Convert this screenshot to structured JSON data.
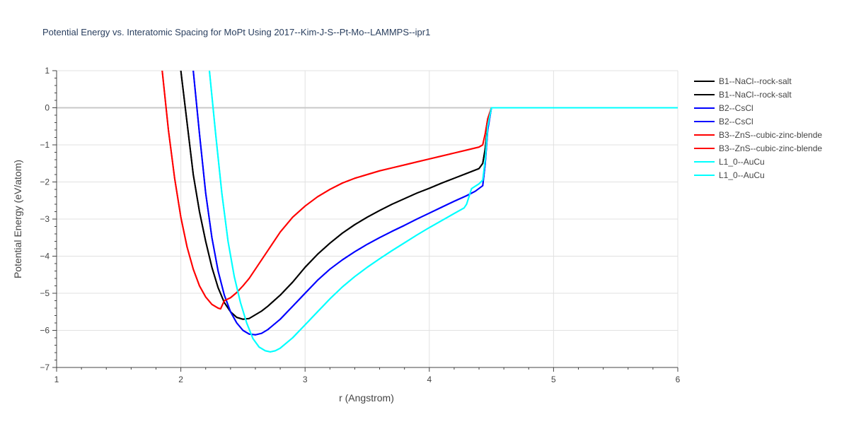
{
  "chart_data": {
    "type": "line",
    "title": "Potential Energy vs. Interatomic Spacing for MoPt Using 2017--Kim-J-S--Pt-Mo--LAMMPS--ipr1",
    "xlabel": "r (Angstrom)",
    "ylabel": "Potential Energy (eV/atom)",
    "xlim": [
      1,
      6
    ],
    "ylim": [
      -7,
      1
    ],
    "xticks": [
      1,
      2,
      3,
      4,
      5,
      6
    ],
    "yticks": [
      1,
      0,
      -1,
      -2,
      -3,
      -4,
      -5,
      -6,
      -7
    ],
    "ytick_labels": [
      "1",
      "0",
      "−1",
      "−2",
      "−3",
      "−4",
      "−5",
      "−6",
      "−7"
    ],
    "grid": true,
    "legend_position": "right",
    "series": [
      {
        "name": "B1--NaCl--rock-salt",
        "color": "#000000",
        "x": [
          2.0,
          2.05,
          2.1,
          2.15,
          2.2,
          2.25,
          2.3,
          2.35,
          2.4,
          2.45,
          2.5,
          2.55,
          2.6,
          2.65,
          2.7,
          2.8,
          2.9,
          3.0,
          3.1,
          3.2,
          3.3,
          3.4,
          3.5,
          3.6,
          3.7,
          3.8,
          3.9,
          4.0,
          4.1,
          4.2,
          4.3,
          4.4,
          4.43,
          4.45,
          4.47,
          4.5,
          5.0,
          5.5,
          6.0
        ],
        "y": [
          1.0,
          -0.4,
          -1.8,
          -2.8,
          -3.6,
          -4.3,
          -4.85,
          -5.25,
          -5.5,
          -5.65,
          -5.7,
          -5.68,
          -5.58,
          -5.48,
          -5.35,
          -5.05,
          -4.7,
          -4.3,
          -3.95,
          -3.65,
          -3.38,
          -3.15,
          -2.95,
          -2.77,
          -2.6,
          -2.45,
          -2.3,
          -2.17,
          -2.03,
          -1.9,
          -1.77,
          -1.64,
          -1.5,
          -1.1,
          -0.5,
          0.0,
          0.0,
          0.0,
          0.0
        ]
      },
      {
        "name": "B1--NaCl--rock-salt",
        "color": "#000000",
        "x": [
          2.0,
          2.05,
          2.1,
          2.15,
          2.2,
          2.25,
          2.3,
          2.35,
          2.4,
          2.45,
          2.5,
          2.55,
          2.6,
          2.65,
          2.7,
          2.8,
          2.9,
          3.0,
          3.1,
          3.2,
          3.3,
          3.4,
          3.5,
          3.6,
          3.7,
          3.8,
          3.9,
          4.0,
          4.1,
          4.2,
          4.3,
          4.4,
          4.43,
          4.45,
          4.47,
          4.5,
          5.0,
          5.5,
          6.0
        ],
        "y": [
          1.0,
          -0.4,
          -1.8,
          -2.8,
          -3.6,
          -4.3,
          -4.85,
          -5.25,
          -5.5,
          -5.65,
          -5.7,
          -5.68,
          -5.58,
          -5.48,
          -5.35,
          -5.05,
          -4.7,
          -4.3,
          -3.95,
          -3.65,
          -3.38,
          -3.15,
          -2.95,
          -2.77,
          -2.6,
          -2.45,
          -2.3,
          -2.17,
          -2.03,
          -1.9,
          -1.77,
          -1.64,
          -1.5,
          -1.1,
          -0.5,
          0.0,
          0.0,
          0.0,
          0.0
        ]
      },
      {
        "name": "B2--CsCl",
        "color": "#0000ff",
        "x": [
          2.1,
          2.15,
          2.2,
          2.25,
          2.3,
          2.35,
          2.4,
          2.45,
          2.5,
          2.55,
          2.6,
          2.65,
          2.7,
          2.8,
          2.9,
          3.0,
          3.1,
          3.2,
          3.3,
          3.4,
          3.5,
          3.6,
          3.7,
          3.8,
          3.9,
          4.0,
          4.1,
          4.2,
          4.3,
          4.37,
          4.43,
          4.45,
          4.47,
          4.5,
          5.0,
          5.5,
          6.0
        ],
        "y": [
          1.0,
          -0.7,
          -2.3,
          -3.5,
          -4.4,
          -5.05,
          -5.5,
          -5.8,
          -6.0,
          -6.1,
          -6.12,
          -6.08,
          -5.98,
          -5.7,
          -5.35,
          -5.0,
          -4.65,
          -4.35,
          -4.1,
          -3.88,
          -3.68,
          -3.5,
          -3.33,
          -3.17,
          -3.0,
          -2.84,
          -2.68,
          -2.52,
          -2.37,
          -2.25,
          -2.1,
          -1.5,
          -0.6,
          0.0,
          0.0,
          0.0,
          0.0
        ]
      },
      {
        "name": "B2--CsCl",
        "color": "#0000ff",
        "x": [
          2.1,
          2.15,
          2.2,
          2.25,
          2.3,
          2.35,
          2.4,
          2.45,
          2.5,
          2.55,
          2.6,
          2.65,
          2.7,
          2.8,
          2.9,
          3.0,
          3.1,
          3.2,
          3.3,
          3.4,
          3.5,
          3.6,
          3.7,
          3.8,
          3.9,
          4.0,
          4.1,
          4.2,
          4.3,
          4.37,
          4.43,
          4.45,
          4.47,
          4.5,
          5.0,
          5.5,
          6.0
        ],
        "y": [
          1.0,
          -0.7,
          -2.3,
          -3.5,
          -4.4,
          -5.05,
          -5.5,
          -5.8,
          -6.0,
          -6.1,
          -6.12,
          -6.08,
          -5.98,
          -5.7,
          -5.35,
          -5.0,
          -4.65,
          -4.35,
          -4.1,
          -3.88,
          -3.68,
          -3.5,
          -3.33,
          -3.17,
          -3.0,
          -2.84,
          -2.68,
          -2.52,
          -2.37,
          -2.25,
          -2.1,
          -1.5,
          -0.6,
          0.0,
          0.0,
          0.0,
          0.0
        ]
      },
      {
        "name": "B3--ZnS--cubic-zinc-blende",
        "color": "#ff0000",
        "x": [
          1.85,
          1.9,
          1.95,
          2.0,
          2.05,
          2.1,
          2.15,
          2.2,
          2.25,
          2.3,
          2.32,
          2.35,
          2.4,
          2.45,
          2.5,
          2.55,
          2.6,
          2.7,
          2.8,
          2.9,
          3.0,
          3.1,
          3.2,
          3.3,
          3.4,
          3.5,
          3.6,
          3.7,
          3.8,
          3.9,
          4.0,
          4.1,
          4.2,
          4.3,
          4.4,
          4.43,
          4.45,
          4.47,
          4.5,
          5.0,
          5.5,
          6.0
        ],
        "y": [
          1.0,
          -0.6,
          -1.9,
          -2.95,
          -3.75,
          -4.35,
          -4.8,
          -5.1,
          -5.3,
          -5.4,
          -5.42,
          -5.2,
          -5.12,
          -4.98,
          -4.8,
          -4.6,
          -4.35,
          -3.85,
          -3.35,
          -2.95,
          -2.65,
          -2.4,
          -2.2,
          -2.03,
          -1.9,
          -1.8,
          -1.7,
          -1.62,
          -1.54,
          -1.46,
          -1.38,
          -1.3,
          -1.22,
          -1.14,
          -1.06,
          -1.0,
          -0.7,
          -0.3,
          0.0,
          0.0,
          0.0,
          0.0
        ]
      },
      {
        "name": "B3--ZnS--cubic-zinc-blende",
        "color": "#ff0000",
        "x": [
          1.85,
          1.9,
          1.95,
          2.0,
          2.05,
          2.1,
          2.15,
          2.2,
          2.25,
          2.3,
          2.32,
          2.35,
          2.4,
          2.45,
          2.5,
          2.55,
          2.6,
          2.7,
          2.8,
          2.9,
          3.0,
          3.1,
          3.2,
          3.3,
          3.4,
          3.5,
          3.6,
          3.7,
          3.8,
          3.9,
          4.0,
          4.1,
          4.2,
          4.3,
          4.4,
          4.43,
          4.45,
          4.47,
          4.5,
          5.0,
          5.5,
          6.0
        ],
        "y": [
          1.0,
          -0.6,
          -1.9,
          -2.95,
          -3.75,
          -4.35,
          -4.8,
          -5.1,
          -5.3,
          -5.4,
          -5.42,
          -5.2,
          -5.12,
          -4.98,
          -4.8,
          -4.6,
          -4.35,
          -3.85,
          -3.35,
          -2.95,
          -2.65,
          -2.4,
          -2.2,
          -2.03,
          -1.9,
          -1.8,
          -1.7,
          -1.62,
          -1.54,
          -1.46,
          -1.38,
          -1.3,
          -1.22,
          -1.14,
          -1.06,
          -1.0,
          -0.7,
          -0.3,
          0.0,
          0.0,
          0.0,
          0.0
        ]
      },
      {
        "name": "L1_0--AuCu",
        "color": "#00ffff",
        "x": [
          2.23,
          2.28,
          2.33,
          2.38,
          2.43,
          2.48,
          2.53,
          2.58,
          2.63,
          2.68,
          2.72,
          2.76,
          2.8,
          2.9,
          3.0,
          3.1,
          3.2,
          3.3,
          3.4,
          3.5,
          3.6,
          3.7,
          3.8,
          3.9,
          4.0,
          4.1,
          4.2,
          4.28,
          4.3,
          4.34,
          4.4,
          4.43,
          4.45,
          4.47,
          4.5,
          5.0,
          5.5,
          6.0
        ],
        "y": [
          1.0,
          -0.7,
          -2.3,
          -3.6,
          -4.55,
          -5.25,
          -5.8,
          -6.22,
          -6.45,
          -6.55,
          -6.58,
          -6.55,
          -6.48,
          -6.2,
          -5.85,
          -5.5,
          -5.15,
          -4.83,
          -4.55,
          -4.3,
          -4.07,
          -3.85,
          -3.64,
          -3.43,
          -3.23,
          -3.04,
          -2.85,
          -2.7,
          -2.6,
          -2.18,
          -2.05,
          -1.95,
          -1.4,
          -0.5,
          0.0,
          0.0,
          0.0,
          0.0
        ]
      },
      {
        "name": "L1_0--AuCu",
        "color": "#00ffff",
        "x": [
          2.23,
          2.28,
          2.33,
          2.38,
          2.43,
          2.48,
          2.53,
          2.58,
          2.63,
          2.68,
          2.72,
          2.76,
          2.8,
          2.9,
          3.0,
          3.1,
          3.2,
          3.3,
          3.4,
          3.5,
          3.6,
          3.7,
          3.8,
          3.9,
          4.0,
          4.1,
          4.2,
          4.28,
          4.3,
          4.34,
          4.4,
          4.43,
          4.45,
          4.47,
          4.5,
          5.0,
          5.5,
          6.0
        ],
        "y": [
          1.0,
          -0.7,
          -2.3,
          -3.6,
          -4.55,
          -5.25,
          -5.8,
          -6.22,
          -6.45,
          -6.55,
          -6.58,
          -6.55,
          -6.48,
          -6.2,
          -5.85,
          -5.5,
          -5.15,
          -4.83,
          -4.55,
          -4.3,
          -4.07,
          -3.85,
          -3.64,
          -3.43,
          -3.23,
          -3.04,
          -2.85,
          -2.7,
          -2.6,
          -2.18,
          -2.05,
          -1.95,
          -1.4,
          -0.5,
          0.0,
          0.0,
          0.0,
          0.0
        ]
      }
    ]
  }
}
